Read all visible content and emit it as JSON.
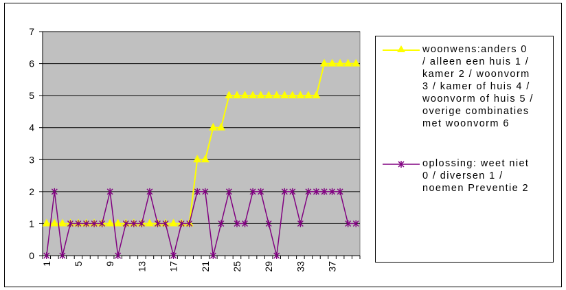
{
  "chart_data": {
    "type": "line",
    "title": "",
    "xlabel": "",
    "ylabel": "",
    "x": [
      1,
      2,
      3,
      4,
      5,
      6,
      7,
      8,
      9,
      10,
      11,
      12,
      13,
      14,
      15,
      16,
      17,
      18,
      19,
      20,
      21,
      22,
      23,
      24,
      25,
      26,
      27,
      28,
      29,
      30,
      31,
      32,
      33,
      34,
      35,
      36,
      37,
      38,
      39,
      40
    ],
    "x_tick_labels": [
      "1",
      "5",
      "9",
      "13",
      "17",
      "21",
      "25",
      "29",
      "33",
      "37"
    ],
    "y_tick_labels": [
      "0",
      "1",
      "2",
      "3",
      "4",
      "5",
      "6",
      "7"
    ],
    "ylim": [
      0,
      7
    ],
    "grid": "horizontal",
    "legend_position": "right",
    "series": [
      {
        "name": "woonwens:anders 0 / alleen een huis 1 / kamer 2 / woonvorm 3 / kamer of huis 4 / woonvorm of huis 5 / overige combinaties met woonvorm 6",
        "color": "#ffff00",
        "marker": "triangle",
        "values": [
          1,
          1,
          1,
          1,
          1,
          1,
          1,
          1,
          1,
          1,
          1,
          1,
          1,
          1,
          1,
          1,
          1,
          1,
          1,
          3,
          3,
          4,
          4,
          5,
          5,
          5,
          5,
          5,
          5,
          5,
          5,
          5,
          5,
          5,
          5,
          6,
          6,
          6,
          6,
          6
        ]
      },
      {
        "name": "oplossing: weet niet 0 / diversen 1 / noemen Preventie 2",
        "color": "#800080",
        "marker": "asterisk",
        "values": [
          0,
          2,
          0,
          1,
          1,
          1,
          1,
          1,
          2,
          0,
          1,
          1,
          1,
          2,
          1,
          1,
          0,
          1,
          1,
          2,
          2,
          0,
          1,
          2,
          1,
          1,
          2,
          2,
          1,
          0,
          2,
          2,
          1,
          2,
          2,
          2,
          2,
          2,
          1,
          1
        ]
      }
    ]
  },
  "legend": {
    "entries": [
      {
        "lines": [
          "woonwens:anders 0",
          "/ alleen een huis 1 /",
          "kamer 2 / woonvorm",
          "3 / kamer of huis 4 /",
          "woonvorm of huis 5 /",
          "overige combinaties",
          "met woonvorm 6"
        ]
      },
      {
        "lines": [
          "oplossing: weet niet",
          "0 / diversen 1 /",
          "noemen Preventie 2"
        ]
      }
    ]
  },
  "colors": {
    "plot_background": "#c0c0c0",
    "gridline": "#000000",
    "series_1": "#ffff00",
    "series_2": "#800080"
  }
}
